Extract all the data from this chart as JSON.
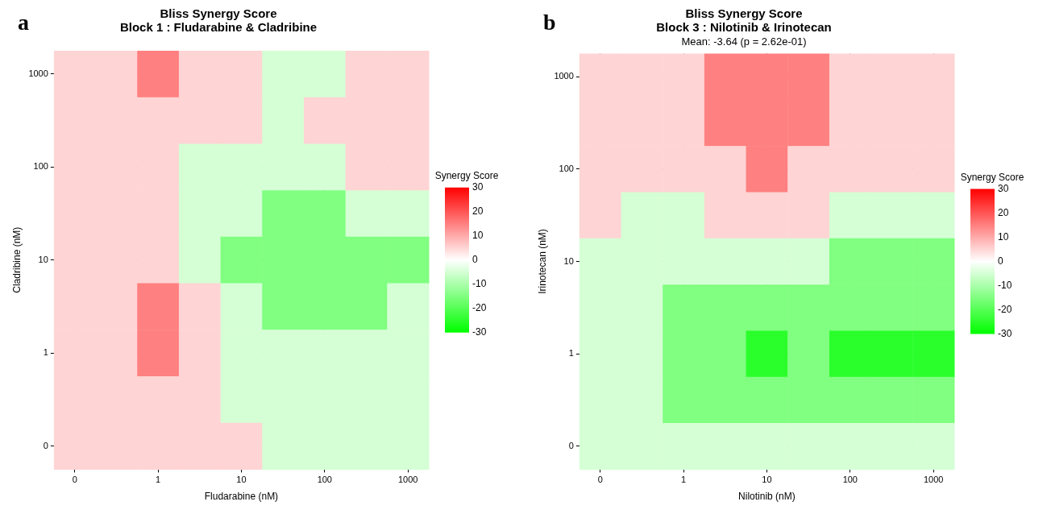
{
  "chart_data": [
    {
      "type": "heatmap",
      "title": "Bliss Synergy Score\nBlock 1 : Fludarabine & Cladribine",
      "xlabel": "Fludarabine (nM)",
      "ylabel": "Cladribine (nM)",
      "clabel": "Synergy Score",
      "annotations": [
        "a"
      ],
      "categories": [
        "0",
        null,
        "1",
        null,
        "10",
        null,
        "100",
        null,
        "1000"
      ],
      "y_categories": [
        "1000",
        null,
        "100",
        null,
        "10",
        null,
        "1",
        null,
        "0"
      ],
      "cells": [
        [
          5,
          5,
          15,
          5,
          5,
          -5,
          -5,
          5,
          5
        ],
        [
          5,
          5,
          5,
          5,
          5,
          -5,
          5,
          5,
          5
        ],
        [
          5,
          5,
          5,
          -5,
          -5,
          -5,
          -5,
          5,
          5
        ],
        [
          5,
          5,
          5,
          -5,
          -5,
          -15,
          -15,
          -5,
          -5
        ],
        [
          5,
          5,
          5,
          -5,
          -15,
          -15,
          -15,
          -15,
          -15
        ],
        [
          5,
          5,
          15,
          5,
          -5,
          -15,
          -15,
          -15,
          -5
        ],
        [
          5,
          5,
          15,
          5,
          -5,
          -5,
          -5,
          -5,
          -5
        ],
        [
          5,
          5,
          5,
          5,
          -5,
          -5,
          -5,
          -5,
          -5
        ],
        [
          5,
          5,
          5,
          5,
          5,
          -5,
          -5,
          -5,
          -5
        ]
      ],
      "clim": [
        -30,
        30
      ],
      "cticks": [
        -30,
        -20,
        -10,
        0,
        10,
        20,
        30
      ],
      "grid": true
    },
    {
      "type": "heatmap",
      "title": "Bliss Synergy Score\nBlock 3 : Nilotinib & Irinotecan",
      "subtitle": "Mean: -3.64 (p = 2.62e-01)",
      "xlabel": "Nilotinib (nM)",
      "ylabel": "Irinotecan (nM)",
      "clabel": "Synergy Score",
      "annotations": [
        "b"
      ],
      "categories": [
        "0",
        null,
        "1",
        null,
        "10",
        null,
        "100",
        null,
        "1000"
      ],
      "y_categories": [
        "1000",
        null,
        "100",
        null,
        "10",
        null,
        "1",
        null,
        "0"
      ],
      "cells": [
        [
          5,
          5,
          5,
          15,
          15,
          15,
          5,
          5,
          5
        ],
        [
          5,
          5,
          5,
          15,
          15,
          15,
          5,
          5,
          5
        ],
        [
          5,
          5,
          5,
          5,
          15,
          5,
          5,
          5,
          5
        ],
        [
          5,
          -5,
          -5,
          5,
          5,
          5,
          -5,
          -5,
          -5
        ],
        [
          -5,
          -5,
          -5,
          -5,
          -5,
          -5,
          -15,
          -15,
          -15
        ],
        [
          -5,
          -5,
          -15,
          -15,
          -15,
          -15,
          -15,
          -15,
          -15
        ],
        [
          -5,
          -5,
          -15,
          -15,
          -25,
          -15,
          -25,
          -25,
          -25
        ],
        [
          -5,
          -5,
          -15,
          -15,
          -15,
          -15,
          -15,
          -15,
          -15
        ],
        [
          -5,
          -5,
          -5,
          -5,
          -5,
          -5,
          -5,
          -5,
          -5
        ]
      ],
      "clim": [
        -30,
        30
      ],
      "cticks": [
        -30,
        -20,
        -10,
        0,
        10,
        20,
        30
      ],
      "grid": true
    }
  ]
}
